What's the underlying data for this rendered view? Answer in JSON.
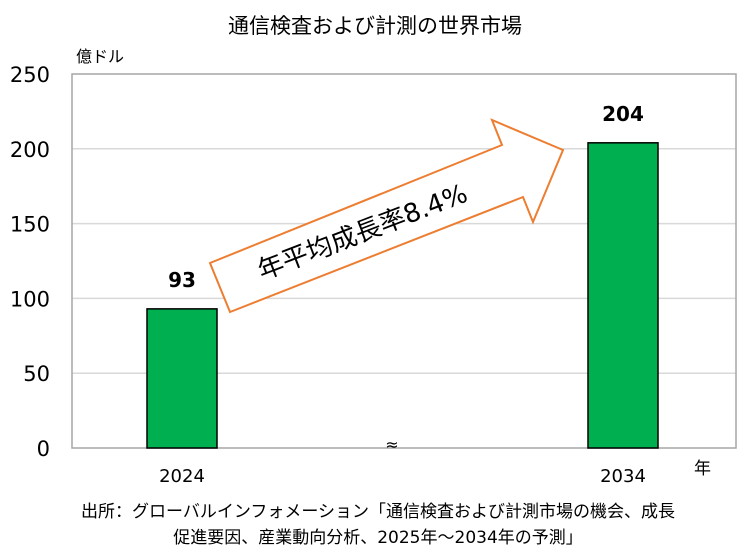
{
  "chart_data": {
    "type": "bar",
    "title": "通信検査および計測の世界市場",
    "ylabel": "億ドル",
    "xlabel": "年",
    "categories": [
      "2024",
      "2034"
    ],
    "values": [
      93,
      204
    ],
    "data_labels": [
      "93",
      "204"
    ],
    "ylim": [
      0,
      250
    ],
    "yticks": [
      0,
      50,
      100,
      150,
      200,
      250
    ],
    "grid": true,
    "axis_break_symbol": "≈",
    "annotation": "年平均成長率8.4%",
    "colors": {
      "bar": "#00b050",
      "bar_edge": "#000000",
      "arrow": "#ed7d31",
      "grid": "#d9d9d9",
      "frame": "#a6a6a6"
    }
  },
  "source": {
    "line1": "出所：グローバルインフォメーション「通信検査および計測市場の機会、成長",
    "line2": "促進要因、産業動向分析、2025年～2034年の予測」"
  }
}
